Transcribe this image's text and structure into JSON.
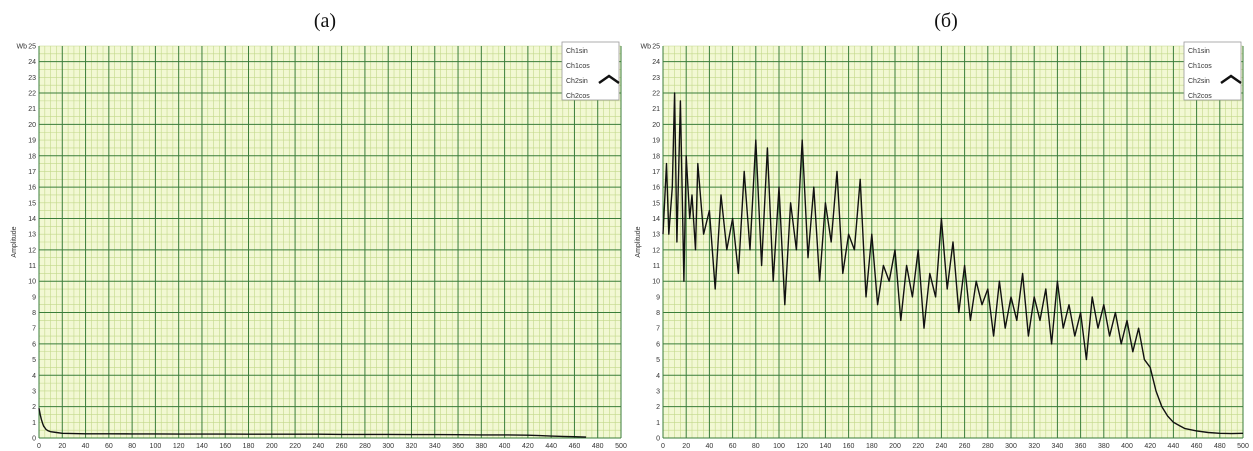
{
  "panels": [
    {
      "label": "(а)",
      "unit": "Wb",
      "ylabel": "Amplitude",
      "legend": [
        "Ch1sin",
        "Ch1cos",
        "Ch2sin",
        "Ch2cos"
      ]
    },
    {
      "label": "(б)",
      "unit": "Wb",
      "ylabel": "Amplitude",
      "legend": [
        "Ch1sin",
        "Ch1cos",
        "Ch2sin",
        "Ch2cos"
      ]
    }
  ],
  "colors": {
    "plot_background": "#f2f8d3",
    "major_grid": "#3a7d3a",
    "minor_grid": "#c2d88a",
    "trace": "#111111"
  },
  "legend_expand_icon": "chevron-up-icon",
  "chart_data": [
    {
      "type": "line",
      "title": "(а)",
      "xlabel": "",
      "ylabel": "Amplitude",
      "xlim": [
        0,
        500
      ],
      "ylim": [
        0,
        25
      ],
      "xticks": [
        0,
        20,
        40,
        60,
        80,
        100,
        120,
        140,
        160,
        180,
        200,
        220,
        240,
        260,
        280,
        300,
        320,
        340,
        360,
        380,
        400,
        420,
        440,
        460,
        480,
        500
      ],
      "yticks": [
        0,
        1,
        2,
        3,
        4,
        5,
        6,
        7,
        8,
        9,
        10,
        11,
        12,
        13,
        14,
        15,
        16,
        17,
        18,
        19,
        20,
        21,
        22,
        23,
        24,
        25
      ],
      "grid": true,
      "legend_position": "top-right",
      "series": [
        {
          "name": "",
          "x": [
            0,
            1,
            2,
            3,
            4,
            6,
            8,
            10,
            15,
            20,
            30,
            40,
            60,
            80,
            100,
            120,
            140,
            160,
            180,
            200,
            220,
            240,
            260,
            280,
            300,
            320,
            340,
            360,
            380,
            400,
            420,
            430,
            440,
            450,
            460,
            470
          ],
          "y": [
            1.9,
            1.5,
            1.2,
            0.95,
            0.75,
            0.55,
            0.45,
            0.4,
            0.35,
            0.3,
            0.28,
            0.27,
            0.27,
            0.26,
            0.26,
            0.25,
            0.25,
            0.25,
            0.24,
            0.24,
            0.24,
            0.24,
            0.23,
            0.23,
            0.23,
            0.22,
            0.22,
            0.21,
            0.2,
            0.2,
            0.18,
            0.15,
            0.12,
            0.1,
            0.08,
            0.06
          ]
        }
      ]
    },
    {
      "type": "line",
      "title": "(б)",
      "xlabel": "",
      "ylabel": "Amplitude",
      "xlim": [
        0,
        500
      ],
      "ylim": [
        0,
        25
      ],
      "xticks": [
        0,
        20,
        40,
        60,
        80,
        100,
        120,
        140,
        160,
        180,
        200,
        220,
        240,
        260,
        280,
        300,
        320,
        340,
        360,
        380,
        400,
        420,
        440,
        460,
        480,
        500
      ],
      "yticks": [
        0,
        1,
        2,
        3,
        4,
        5,
        6,
        7,
        8,
        9,
        10,
        11,
        12,
        13,
        14,
        15,
        16,
        17,
        18,
        19,
        20,
        21,
        22,
        23,
        24,
        25
      ],
      "grid": true,
      "legend_position": "top-right",
      "series": [
        {
          "name": "",
          "x": [
            0,
            3,
            5,
            8,
            10,
            12,
            15,
            18,
            20,
            23,
            25,
            28,
            30,
            35,
            40,
            45,
            50,
            55,
            60,
            65,
            70,
            75,
            80,
            85,
            90,
            95,
            100,
            105,
            110,
            115,
            120,
            125,
            130,
            135,
            140,
            145,
            150,
            155,
            160,
            165,
            170,
            175,
            180,
            185,
            190,
            195,
            200,
            205,
            210,
            215,
            220,
            225,
            230,
            235,
            240,
            245,
            250,
            255,
            260,
            265,
            270,
            275,
            280,
            285,
            290,
            295,
            300,
            305,
            310,
            315,
            320,
            325,
            330,
            335,
            340,
            345,
            350,
            355,
            360,
            365,
            370,
            375,
            380,
            385,
            390,
            395,
            400,
            405,
            410,
            415,
            420,
            425,
            430,
            435,
            440,
            445,
            450,
            460,
            470,
            480,
            490,
            500
          ],
          "y": [
            13,
            17.5,
            13,
            16,
            22,
            12.5,
            21.5,
            10,
            18,
            14,
            15.5,
            12,
            17.5,
            13,
            14.5,
            9.5,
            15.5,
            12,
            14,
            10.5,
            17,
            12,
            19,
            11,
            18.5,
            10,
            16,
            8.5,
            15,
            12,
            19,
            11.5,
            16,
            10,
            15,
            12.5,
            17,
            10.5,
            13,
            12,
            16.5,
            9,
            13,
            8.5,
            11,
            10,
            12,
            7.5,
            11,
            9,
            12,
            7,
            10.5,
            9,
            14,
            9.5,
            12.5,
            8,
            11,
            7.5,
            10,
            8.5,
            9.5,
            6.5,
            10,
            7,
            9,
            7.5,
            10.5,
            6.5,
            9,
            7.5,
            9.5,
            6,
            10,
            7,
            8.5,
            6.5,
            8,
            5,
            9,
            7,
            8.5,
            6.5,
            8,
            6,
            7.5,
            5.5,
            7,
            5,
            4.5,
            3,
            2,
            1.4,
            1,
            0.8,
            0.6,
            0.45,
            0.35,
            0.3,
            0.28,
            0.3
          ]
        }
      ]
    }
  ]
}
